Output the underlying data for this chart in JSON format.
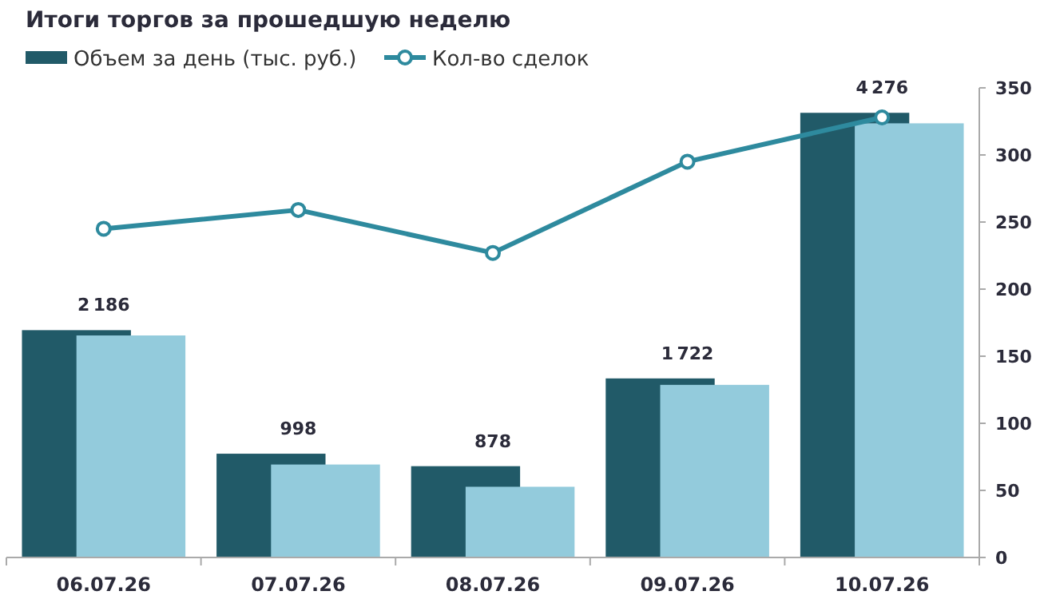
{
  "chart_data": {
    "type": "bar",
    "title": "Итоги торгов за прошедшую неделю",
    "categories": [
      "06.07.26",
      "07.07.26",
      "08.07.26",
      "09.07.26",
      "10.07.26"
    ],
    "series": [
      {
        "name": "Объем за день (тыс. руб.)",
        "color": "#215a68",
        "values": [
          2186,
          998,
          878,
          1722,
          4276
        ],
        "data_labels": true
      },
      {
        "color": "#93cbdc",
        "values": [
          2135,
          894,
          680,
          1660,
          4175
        ]
      },
      {
        "name": "Кол-во сделок",
        "type": "line",
        "axis": "y2",
        "color": "#2e8a9e",
        "marker": "circle",
        "values": [
          245,
          259,
          227,
          295,
          328
        ]
      }
    ],
    "ylim": [
      0,
      4516
    ],
    "y2lim": [
      0,
      350
    ],
    "y2ticks": [
      0,
      50,
      100,
      150,
      200,
      250,
      300,
      350
    ],
    "legend": "top left",
    "grid": false
  }
}
